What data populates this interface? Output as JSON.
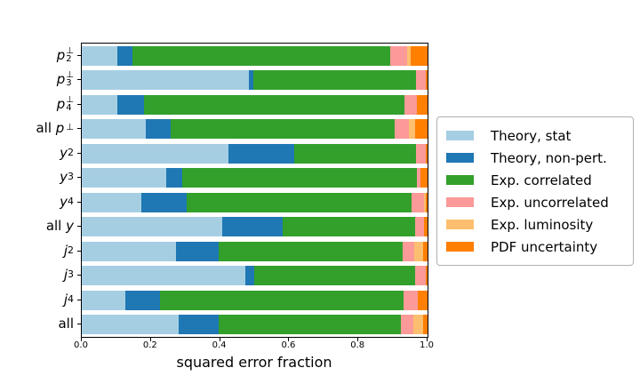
{
  "figure": {
    "background": "#ffffff",
    "frame_color": "#000000"
  },
  "chart_data": {
    "type": "bar",
    "orientation": "horizontal",
    "stacked": true,
    "title": "",
    "xlabel": "squared error fraction",
    "ylabel": "",
    "xlim": [
      0.0,
      1.0
    ],
    "grid": false,
    "legend_position": "outside-center-right",
    "xticks": [
      0.0,
      0.2,
      0.4,
      0.6,
      0.8,
      1.0
    ],
    "xtick_labels": [
      "0.0",
      "0.2",
      "0.4",
      "0.6",
      "0.8",
      "1.0"
    ],
    "categories": [
      "p2⊥",
      "p3⊥",
      "p4⊥",
      "all p⊥",
      "y2",
      "y3",
      "y4",
      "all y",
      "j2",
      "j3",
      "j4",
      "all"
    ],
    "category_labels": [
      {
        "id": "p2perp",
        "prefix": "",
        "base": "p",
        "sub": "2",
        "sup": "⊥"
      },
      {
        "id": "p3perp",
        "prefix": "",
        "base": "p",
        "sub": "3",
        "sup": "⊥"
      },
      {
        "id": "p4perp",
        "prefix": "",
        "base": "p",
        "sub": "4",
        "sup": "⊥"
      },
      {
        "id": "all-pperp",
        "prefix": "all ",
        "base": "p",
        "sub": "",
        "sup": "⊥"
      },
      {
        "id": "y2",
        "prefix": "",
        "base": "y",
        "sub": "2",
        "sup": ""
      },
      {
        "id": "y3",
        "prefix": "",
        "base": "y",
        "sub": "3",
        "sup": ""
      },
      {
        "id": "y4",
        "prefix": "",
        "base": "y",
        "sub": "4",
        "sup": ""
      },
      {
        "id": "all-y",
        "prefix": "all ",
        "base": "y",
        "sub": "",
        "sup": ""
      },
      {
        "id": "j2",
        "prefix": "",
        "base": "j",
        "sub": "2",
        "sup": ""
      },
      {
        "id": "j3",
        "prefix": "",
        "base": "j",
        "sub": "3",
        "sup": ""
      },
      {
        "id": "j4",
        "prefix": "",
        "base": "j",
        "sub": "4",
        "sup": ""
      },
      {
        "id": "all",
        "prefix": "all",
        "base": "",
        "sub": "",
        "sup": ""
      }
    ],
    "series": [
      {
        "key": "theory-stat",
        "name": "Theory, stat",
        "color": "#a6cee3",
        "values": [
          0.103,
          0.483,
          0.104,
          0.184,
          0.425,
          0.245,
          0.171,
          0.406,
          0.273,
          0.472,
          0.126,
          0.279
        ]
      },
      {
        "key": "theory-nonpert",
        "name": "Theory, non-pert.",
        "color": "#1f78b4",
        "values": [
          0.044,
          0.012,
          0.075,
          0.074,
          0.19,
          0.046,
          0.132,
          0.174,
          0.122,
          0.027,
          0.1,
          0.118
        ]
      },
      {
        "key": "exp-correlated",
        "name": "Exp. correlated",
        "color": "#33a02c",
        "values": [
          0.746,
          0.472,
          0.754,
          0.648,
          0.352,
          0.678,
          0.652,
          0.383,
          0.532,
          0.465,
          0.705,
          0.525
        ]
      },
      {
        "key": "exp-uncorrelated",
        "name": "Exp. uncorrelated",
        "color": "#fb9a99",
        "values": [
          0.047,
          0.029,
          0.036,
          0.041,
          0.028,
          0.011,
          0.034,
          0.028,
          0.034,
          0.031,
          0.041,
          0.036
        ]
      },
      {
        "key": "exp-luminosity",
        "name": "Exp. luminosity",
        "color": "#fdbf6f",
        "values": [
          0.011,
          0.0,
          0.0,
          0.018,
          0.0,
          0.0,
          0.006,
          0.0,
          0.025,
          0.0,
          0.0,
          0.029
        ]
      },
      {
        "key": "pdf-uncertainty",
        "name": "PDF uncertainty",
        "color": "#ff7f00",
        "values": [
          0.049,
          0.004,
          0.031,
          0.035,
          0.005,
          0.02,
          0.005,
          0.009,
          0.014,
          0.005,
          0.028,
          0.013
        ]
      }
    ]
  }
}
